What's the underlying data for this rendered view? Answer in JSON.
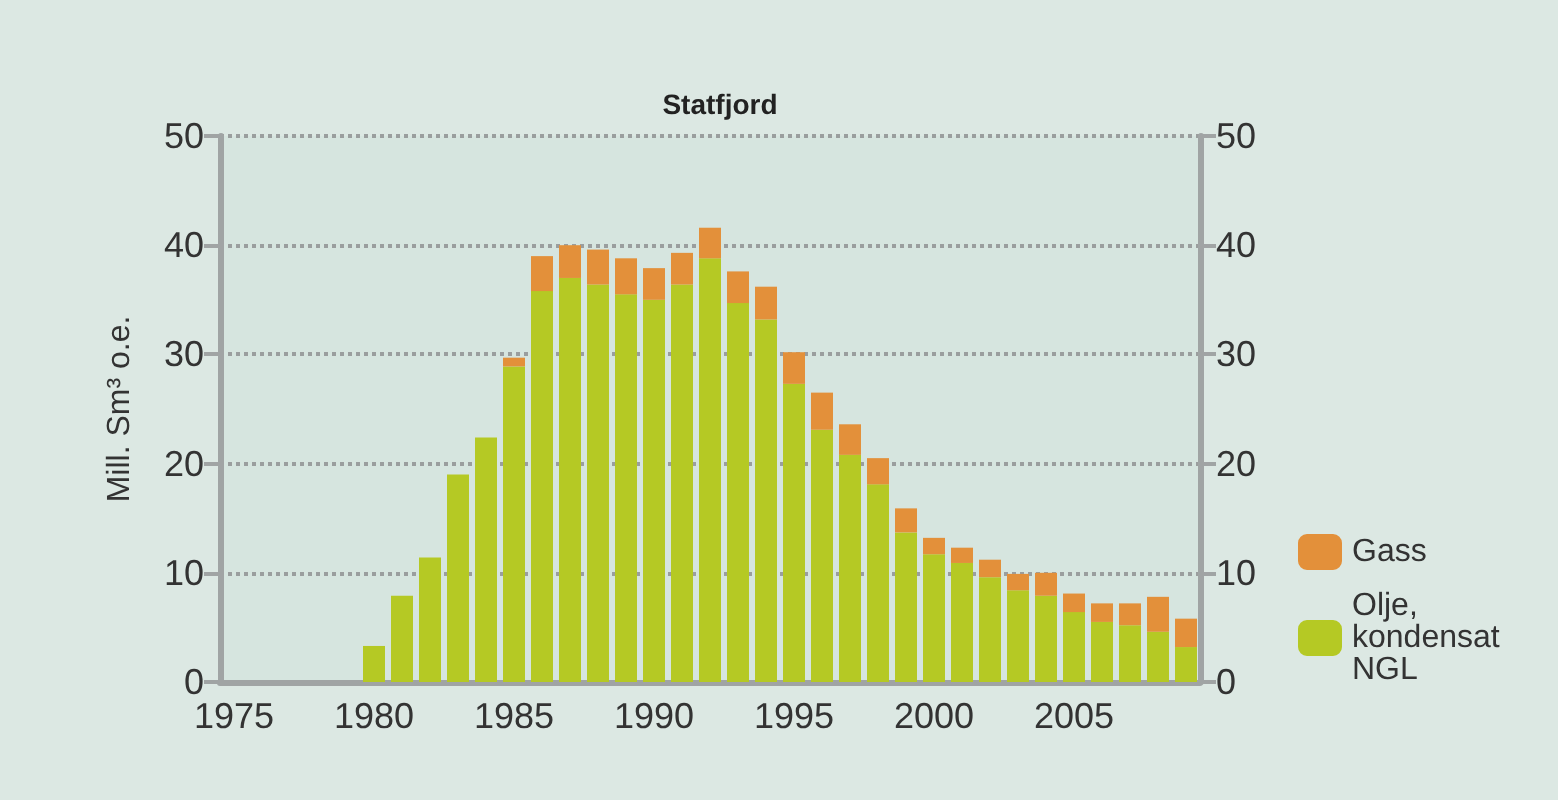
{
  "chart_data": {
    "type": "bar",
    "title": "Statfjord",
    "ylabel": "Mill. Sm³ o.e.",
    "stacked": true,
    "x": [
      1980,
      1981,
      1982,
      1983,
      1984,
      1985,
      1986,
      1987,
      1988,
      1989,
      1990,
      1991,
      1992,
      1993,
      1994,
      1995,
      1996,
      1997,
      1998,
      1999,
      2000,
      2001,
      2002,
      2003,
      2004,
      2005,
      2006,
      2007,
      2008,
      2009
    ],
    "series": [
      {
        "name": "Olje, kondensat NGL",
        "color": "#b5c924",
        "values": [
          3.3,
          7.9,
          11.4,
          19.0,
          22.4,
          28.9,
          35.8,
          37.0,
          36.4,
          35.5,
          35.0,
          36.4,
          38.8,
          34.7,
          33.2,
          27.3,
          23.1,
          20.8,
          18.1,
          13.7,
          11.7,
          10.9,
          9.6,
          8.4,
          7.9,
          6.4,
          5.5,
          5.2,
          4.6,
          3.2
        ]
      },
      {
        "name": "Gass",
        "color": "#e3903a",
        "values": [
          null,
          null,
          null,
          null,
          null,
          0.8,
          3.2,
          3.0,
          3.2,
          3.3,
          2.9,
          2.9,
          2.8,
          2.9,
          3.0,
          2.9,
          3.4,
          2.8,
          2.4,
          2.2,
          1.5,
          1.4,
          1.6,
          1.5,
          2.1,
          1.7,
          1.7,
          2.0,
          3.2,
          2.6
        ]
      }
    ],
    "xlim": [
      1974.5,
      2009.5
    ],
    "xticks": [
      1975,
      1980,
      1985,
      1990,
      1995,
      2000,
      2005
    ],
    "ylim": [
      0,
      50
    ],
    "yticks": [
      0,
      10,
      20,
      30,
      40,
      50
    ],
    "y2lim": [
      0,
      50
    ],
    "y2ticks": [
      0,
      10,
      20,
      30,
      40,
      50
    ],
    "grid": "y",
    "legend": "right"
  }
}
